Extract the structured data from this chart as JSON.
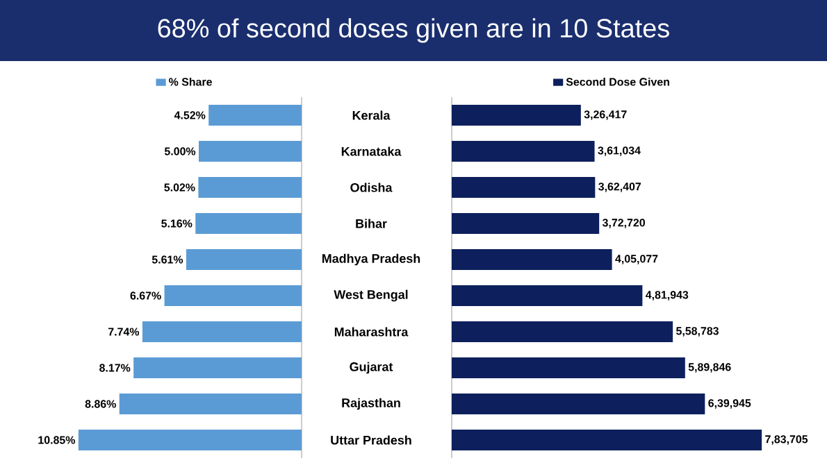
{
  "chart_data": [
    {
      "type": "bar",
      "orientation": "horizontal",
      "title": "68% of second doses given are in 10 States",
      "categories": [
        "Kerala",
        "Karnataka",
        "Odisha",
        "Bihar",
        "Madhya Pradesh",
        "West Bengal",
        "Maharashtra",
        "Gujarat",
        "Rajasthan",
        "Uttar Pradesh"
      ],
      "series": [
        {
          "name": "% Share",
          "color": "#5b9bd5",
          "values": [
            4.52,
            5.0,
            5.02,
            5.16,
            5.61,
            6.67,
            7.74,
            8.17,
            8.86,
            10.85
          ],
          "value_labels": [
            "4.52%",
            "5.00%",
            "5.02%",
            "5.16%",
            "5.61%",
            "6.67%",
            "7.74%",
            "8.17%",
            "8.86%",
            "10.85%"
          ]
        }
      ],
      "tick_labels": "y",
      "legend": "top"
    },
    {
      "type": "bar",
      "orientation": "horizontal",
      "series": [
        {
          "name": "Second Dose Given",
          "color": "#0d1f5c",
          "values": [
            326417,
            361034,
            362407,
            372720,
            405077,
            481943,
            558783,
            589846,
            639945,
            783705
          ],
          "value_labels": [
            "3,26,417",
            "3,61,034",
            "3,62,407",
            "3,72,720",
            "4,05,077",
            "4,81,943",
            "5,58,783",
            "5,89,846",
            "6,39,945",
            "7,83,705"
          ]
        }
      ],
      "tick_labels": false,
      "legend": "top"
    }
  ]
}
